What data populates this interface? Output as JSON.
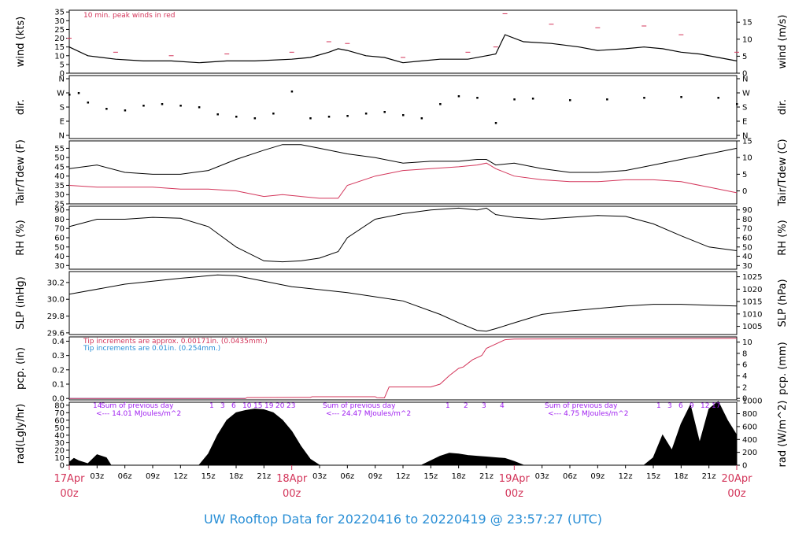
{
  "title": "UW Rooftop Data for 20220416  to  20220419 @ 23:57:27  (UTC)",
  "colors": {
    "red": "#d3355a",
    "blue": "#2a8fd6",
    "purple": "#a020f0",
    "black": "#000000"
  },
  "x_axis": {
    "hour_ticks": [
      "03z",
      "06z",
      "09z",
      "12z",
      "15z",
      "18z",
      "21z",
      "03z",
      "06z",
      "09z",
      "12z",
      "15z",
      "18z",
      "21z",
      "03z",
      "06z",
      "09z",
      "12z",
      "15z",
      "18z",
      "21z"
    ],
    "day_labels": [
      {
        "date": "17Apr",
        "time": "00z"
      },
      {
        "date": "18Apr",
        "time": "00z"
      },
      {
        "date": "19Apr",
        "time": "00z"
      },
      {
        "date": "20Apr",
        "time": "00z"
      }
    ]
  },
  "panels": {
    "wind": {
      "left_label": "wind (kts)",
      "right_label": "wind (m/s)",
      "left_ticks": [
        "0",
        "5",
        "10",
        "15",
        "20",
        "25",
        "30",
        "35"
      ],
      "right_ticks": [
        "0",
        "5",
        "10",
        "15"
      ],
      "note": "10 min. peak winds in red"
    },
    "dir": {
      "left_label": "dir.",
      "right_label": "dir.",
      "ticks": [
        "N",
        "W",
        "S",
        "E",
        "N"
      ]
    },
    "temp": {
      "left_label": "Tair/Tdew (F)",
      "right_label": "Tair/Tdew (C)",
      "left_ticks": [
        "25",
        "30",
        "35",
        "40",
        "45",
        "50",
        "55"
      ],
      "right_ticks": [
        "0",
        "5",
        "10",
        "15"
      ]
    },
    "rh": {
      "left_label": "RH (%)",
      "right_label": "RH (%)",
      "ticks": [
        "30",
        "40",
        "50",
        "60",
        "70",
        "80",
        "90"
      ]
    },
    "slp": {
      "left_label": "SLP (inHg)",
      "right_label": "SLP (hPa)",
      "left_ticks": [
        "29.6",
        "29.8",
        "30.0",
        "30.2"
      ],
      "right_ticks": [
        "1005",
        "1010",
        "1015",
        "1020",
        "1025"
      ]
    },
    "pcp": {
      "left_label": "pcp. (in)",
      "right_label": "pcp. (mm)",
      "left_ticks": [
        "0.0",
        "0.1",
        "0.2",
        "0.3",
        "0.4"
      ],
      "right_ticks": [
        "0",
        "2",
        "4",
        "6",
        "8",
        "10"
      ],
      "note_red": "Tip increments are approx. 0.00171in. (0.0435mm.)",
      "note_blue": "Tip increments are 0.01in. (0.254mm.)"
    },
    "rad": {
      "left_label": "rad(Lgly/hr)",
      "right_label": "rad (W/m^2)",
      "left_ticks": [
        "0",
        "10",
        "20",
        "30",
        "40",
        "50",
        "60",
        "70",
        "80"
      ],
      "right_ticks": [
        "0",
        "200",
        "400",
        "600",
        "800",
        "1000"
      ],
      "sums": [
        {
          "day_marker": "14",
          "head": "Sum of previous day",
          "value": "<--- 14.01 MJoules/m^2"
        },
        {
          "day_marker": "",
          "head": "Sum of previous day",
          "value": "<--- 24.47 MJoules/m^2"
        },
        {
          "day_marker": "",
          "head": "Sum of previous day",
          "value": "<--- 4.75 MJoules/m^2"
        }
      ],
      "hour_marks": [
        [
          "1",
          "3",
          "6",
          "10",
          "15",
          "19",
          "20",
          "23"
        ],
        [
          "1",
          "2",
          "3",
          "4"
        ],
        [
          "1",
          "3",
          "6",
          "9",
          "12",
          "17"
        ]
      ]
    }
  },
  "chart_data": {
    "type": "line",
    "x_unit": "hours since 2022-04-17 00z",
    "xlim": [
      0,
      72
    ],
    "wind_kts": [
      [
        0,
        15
      ],
      [
        2,
        10
      ],
      [
        5,
        8
      ],
      [
        8,
        7
      ],
      [
        11,
        7
      ],
      [
        14,
        6
      ],
      [
        17,
        7
      ],
      [
        20,
        7
      ],
      [
        24,
        8
      ],
      [
        26,
        9
      ],
      [
        28,
        12
      ],
      [
        29,
        14
      ],
      [
        30,
        13
      ],
      [
        32,
        10
      ],
      [
        34,
        9
      ],
      [
        36,
        6
      ],
      [
        38,
        7
      ],
      [
        40,
        8
      ],
      [
        43,
        8
      ],
      [
        45,
        10
      ],
      [
        46,
        11
      ],
      [
        47,
        22
      ],
      [
        49,
        18
      ],
      [
        52,
        17
      ],
      [
        55,
        15
      ],
      [
        57,
        13
      ],
      [
        60,
        14
      ],
      [
        62,
        15
      ],
      [
        64,
        14
      ],
      [
        66,
        12
      ],
      [
        68,
        11
      ],
      [
        70,
        9
      ],
      [
        72,
        7
      ]
    ],
    "wind_peak_kts": [
      [
        0,
        20
      ],
      [
        5,
        12
      ],
      [
        11,
        10
      ],
      [
        17,
        11
      ],
      [
        24,
        12
      ],
      [
        28,
        18
      ],
      [
        30,
        17
      ],
      [
        36,
        9
      ],
      [
        43,
        12
      ],
      [
        46,
        15
      ],
      [
        47,
        34
      ],
      [
        52,
        28
      ],
      [
        57,
        26
      ],
      [
        62,
        27
      ],
      [
        66,
        22
      ],
      [
        72,
        12
      ]
    ],
    "dir_deg": [
      [
        0,
        260
      ],
      [
        1,
        270
      ],
      [
        2,
        210
      ],
      [
        4,
        170
      ],
      [
        6,
        160
      ],
      [
        8,
        190
      ],
      [
        10,
        200
      ],
      [
        12,
        190
      ],
      [
        14,
        180
      ],
      [
        16,
        135
      ],
      [
        18,
        120
      ],
      [
        20,
        110
      ],
      [
        22,
        140
      ],
      [
        24,
        280
      ],
      [
        26,
        110
      ],
      [
        28,
        120
      ],
      [
        30,
        125
      ],
      [
        32,
        140
      ],
      [
        34,
        150
      ],
      [
        36,
        130
      ],
      [
        38,
        110
      ],
      [
        40,
        200
      ],
      [
        42,
        250
      ],
      [
        44,
        240
      ],
      [
        46,
        80
      ],
      [
        48,
        230
      ],
      [
        50,
        235
      ],
      [
        54,
        225
      ],
      [
        58,
        230
      ],
      [
        62,
        240
      ],
      [
        66,
        245
      ],
      [
        70,
        240
      ],
      [
        72,
        200
      ]
    ],
    "tair_f": [
      [
        0,
        44
      ],
      [
        3,
        46
      ],
      [
        6,
        42
      ],
      [
        9,
        41
      ],
      [
        12,
        41
      ],
      [
        15,
        43
      ],
      [
        18,
        49
      ],
      [
        21,
        54
      ],
      [
        23,
        57
      ],
      [
        25,
        57
      ],
      [
        27,
        55
      ],
      [
        30,
        52
      ],
      [
        33,
        50
      ],
      [
        36,
        47
      ],
      [
        39,
        48
      ],
      [
        42,
        48
      ],
      [
        44,
        49
      ],
      [
        45,
        49
      ],
      [
        46,
        46
      ],
      [
        48,
        47
      ],
      [
        51,
        44
      ],
      [
        54,
        42
      ],
      [
        57,
        42
      ],
      [
        60,
        43
      ],
      [
        63,
        46
      ],
      [
        66,
        49
      ],
      [
        69,
        52
      ],
      [
        72,
        55
      ]
    ],
    "tdew_f": [
      [
        0,
        35
      ],
      [
        3,
        34
      ],
      [
        6,
        34
      ],
      [
        9,
        34
      ],
      [
        12,
        33
      ],
      [
        15,
        33
      ],
      [
        18,
        32
      ],
      [
        21,
        29
      ],
      [
        23,
        30
      ],
      [
        25,
        29
      ],
      [
        27,
        28
      ],
      [
        29,
        28
      ],
      [
        30,
        35
      ],
      [
        33,
        40
      ],
      [
        36,
        43
      ],
      [
        39,
        44
      ],
      [
        42,
        45
      ],
      [
        44,
        46
      ],
      [
        45,
        47
      ],
      [
        46,
        44
      ],
      [
        48,
        40
      ],
      [
        51,
        38
      ],
      [
        54,
        37
      ],
      [
        57,
        37
      ],
      [
        60,
        38
      ],
      [
        63,
        38
      ],
      [
        66,
        37
      ],
      [
        69,
        34
      ],
      [
        72,
        31
      ]
    ],
    "rh_pct": [
      [
        0,
        72
      ],
      [
        3,
        80
      ],
      [
        6,
        80
      ],
      [
        9,
        82
      ],
      [
        12,
        81
      ],
      [
        15,
        72
      ],
      [
        18,
        50
      ],
      [
        21,
        35
      ],
      [
        23,
        34
      ],
      [
        25,
        35
      ],
      [
        27,
        38
      ],
      [
        29,
        45
      ],
      [
        30,
        60
      ],
      [
        33,
        80
      ],
      [
        36,
        86
      ],
      [
        39,
        90
      ],
      [
        42,
        92
      ],
      [
        44,
        90
      ],
      [
        45,
        92
      ],
      [
        46,
        85
      ],
      [
        48,
        82
      ],
      [
        51,
        80
      ],
      [
        54,
        82
      ],
      [
        57,
        84
      ],
      [
        60,
        83
      ],
      [
        63,
        75
      ],
      [
        66,
        62
      ],
      [
        69,
        50
      ],
      [
        72,
        46
      ]
    ],
    "slp_inhg": [
      [
        0,
        30.06
      ],
      [
        6,
        30.18
      ],
      [
        12,
        30.25
      ],
      [
        16,
        30.29
      ],
      [
        18,
        30.28
      ],
      [
        24,
        30.15
      ],
      [
        30,
        30.08
      ],
      [
        36,
        29.98
      ],
      [
        40,
        29.82
      ],
      [
        42,
        29.72
      ],
      [
        44,
        29.63
      ],
      [
        45,
        29.62
      ],
      [
        46,
        29.65
      ],
      [
        48,
        29.72
      ],
      [
        51,
        29.82
      ],
      [
        54,
        29.86
      ],
      [
        57,
        29.89
      ],
      [
        60,
        29.92
      ],
      [
        63,
        29.94
      ],
      [
        66,
        29.94
      ],
      [
        69,
        29.93
      ],
      [
        72,
        29.92
      ]
    ],
    "pcp_in": [
      [
        0,
        0.0
      ],
      [
        19,
        0.0
      ],
      [
        19.2,
        0.006
      ],
      [
        26,
        0.007
      ],
      [
        26.2,
        0.012
      ],
      [
        33,
        0.012
      ],
      [
        33.2,
        0.005
      ],
      [
        34,
        0.004
      ],
      [
        34.5,
        0.08
      ],
      [
        39,
        0.08
      ],
      [
        40,
        0.1
      ],
      [
        41,
        0.16
      ],
      [
        42,
        0.21
      ],
      [
        42.5,
        0.22
      ],
      [
        43.5,
        0.27
      ],
      [
        44.5,
        0.3
      ],
      [
        45,
        0.35
      ],
      [
        46,
        0.38
      ],
      [
        47,
        0.41
      ],
      [
        48,
        0.415
      ],
      [
        72,
        0.42
      ]
    ],
    "rad_lgly": [
      [
        0,
        4
      ],
      [
        0.5,
        9
      ],
      [
        1,
        6
      ],
      [
        2,
        2
      ],
      [
        3,
        14
      ],
      [
        4,
        10
      ],
      [
        4.5,
        0
      ],
      [
        14,
        0
      ],
      [
        15,
        15
      ],
      [
        16,
        40
      ],
      [
        17,
        60
      ],
      [
        18,
        70
      ],
      [
        19,
        73
      ],
      [
        20,
        75
      ],
      [
        21,
        74
      ],
      [
        22,
        70
      ],
      [
        23,
        60
      ],
      [
        24,
        45
      ],
      [
        25,
        25
      ],
      [
        26,
        8
      ],
      [
        27,
        0
      ],
      [
        38,
        0
      ],
      [
        39,
        6
      ],
      [
        40,
        12
      ],
      [
        41,
        16
      ],
      [
        42,
        15
      ],
      [
        43,
        13
      ],
      [
        44,
        12
      ],
      [
        45,
        11
      ],
      [
        46,
        10
      ],
      [
        47,
        9
      ],
      [
        48,
        5
      ],
      [
        49,
        0
      ],
      [
        62,
        0
      ],
      [
        63,
        10
      ],
      [
        64,
        40
      ],
      [
        65,
        20
      ],
      [
        66,
        55
      ],
      [
        67,
        80
      ],
      [
        68,
        30
      ],
      [
        69,
        75
      ],
      [
        70,
        85
      ],
      [
        71,
        60
      ],
      [
        72,
        40
      ]
    ]
  }
}
